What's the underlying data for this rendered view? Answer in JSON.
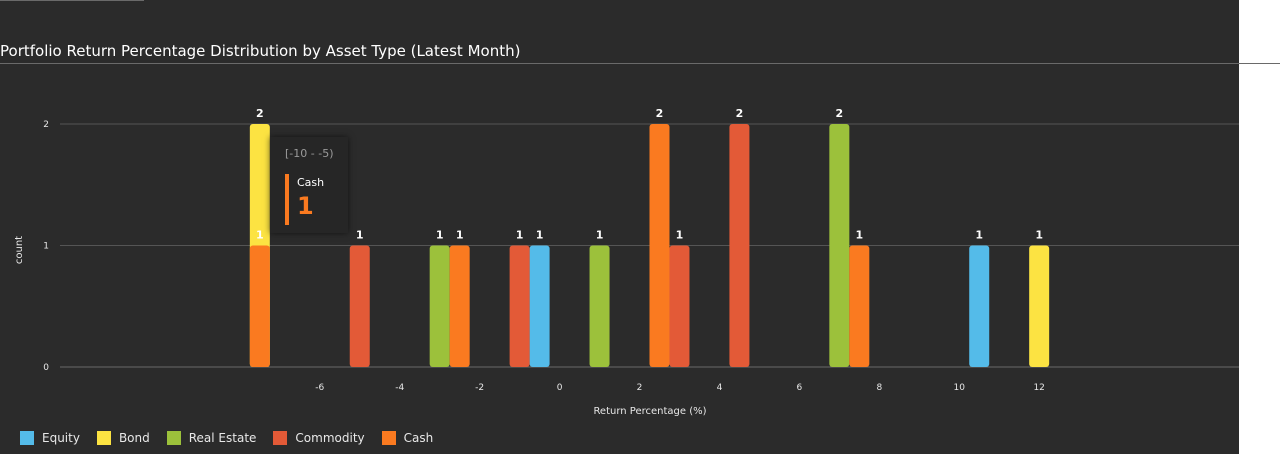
{
  "chart_data": {
    "type": "bar",
    "title": "Portfolio Return Percentage Distribution by Asset Type (Latest Month)",
    "xlabel": "Return Percentage (%)",
    "ylabel": "count",
    "xlim": [
      -12.5,
      17
    ],
    "ylim": [
      0,
      2
    ],
    "x_ticks": [
      -6,
      -4,
      -2,
      0,
      2,
      4,
      6,
      8,
      10,
      12
    ],
    "y_ticks": [
      0,
      1,
      2
    ],
    "legend_position": "bottom-left",
    "grid": true,
    "series": [
      {
        "name": "Equity",
        "color": "#54bbe9",
        "bins": [
          {
            "x": -0.5,
            "count": 1
          },
          {
            "x": 10.5,
            "count": 1
          }
        ]
      },
      {
        "name": "Bond",
        "color": "#fce342",
        "bins": [
          {
            "x": -7.5,
            "count": 2
          },
          {
            "x": 12,
            "count": 1
          }
        ]
      },
      {
        "name": "Real Estate",
        "color": "#9cc13b",
        "bins": [
          {
            "x": -3,
            "count": 1
          },
          {
            "x": 1,
            "count": 1
          },
          {
            "x": 7,
            "count": 2
          }
        ]
      },
      {
        "name": "Commodity",
        "color": "#e35a37",
        "bins": [
          {
            "x": -5,
            "count": 1
          },
          {
            "x": -1,
            "count": 1
          },
          {
            "x": 3,
            "count": 1
          },
          {
            "x": 4.5,
            "count": 2
          }
        ]
      },
      {
        "name": "Cash",
        "color": "#fa7a20",
        "bins": [
          {
            "x": -7.5,
            "count": 1
          },
          {
            "x": -2.5,
            "count": 1
          },
          {
            "x": 2.5,
            "count": 2
          },
          {
            "x": 7.5,
            "count": 1
          }
        ]
      }
    ]
  },
  "tooltip": {
    "range": "[-10 - -5)",
    "series": "Cash",
    "value": "1"
  }
}
